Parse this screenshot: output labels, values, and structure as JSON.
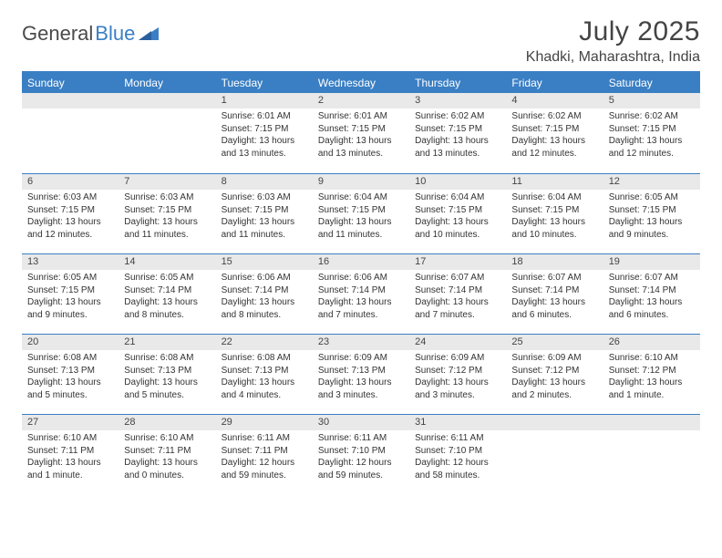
{
  "logo": {
    "text1": "General",
    "text2": "Blue"
  },
  "title": "July 2025",
  "location": "Khadki, Maharashtra, India",
  "colors": {
    "accent": "#3a7fc4",
    "header_bg": "#3a7fc4",
    "header_text": "#ffffff",
    "daynum_bg": "#e9e9e9",
    "body_text": "#333333",
    "page_bg": "#ffffff"
  },
  "weekdays": [
    "Sunday",
    "Monday",
    "Tuesday",
    "Wednesday",
    "Thursday",
    "Friday",
    "Saturday"
  ],
  "weeks": [
    [
      null,
      null,
      {
        "n": "1",
        "sr": "6:01 AM",
        "ss": "7:15 PM",
        "dl": "13 hours and 13 minutes."
      },
      {
        "n": "2",
        "sr": "6:01 AM",
        "ss": "7:15 PM",
        "dl": "13 hours and 13 minutes."
      },
      {
        "n": "3",
        "sr": "6:02 AM",
        "ss": "7:15 PM",
        "dl": "13 hours and 13 minutes."
      },
      {
        "n": "4",
        "sr": "6:02 AM",
        "ss": "7:15 PM",
        "dl": "13 hours and 12 minutes."
      },
      {
        "n": "5",
        "sr": "6:02 AM",
        "ss": "7:15 PM",
        "dl": "13 hours and 12 minutes."
      }
    ],
    [
      {
        "n": "6",
        "sr": "6:03 AM",
        "ss": "7:15 PM",
        "dl": "13 hours and 12 minutes."
      },
      {
        "n": "7",
        "sr": "6:03 AM",
        "ss": "7:15 PM",
        "dl": "13 hours and 11 minutes."
      },
      {
        "n": "8",
        "sr": "6:03 AM",
        "ss": "7:15 PM",
        "dl": "13 hours and 11 minutes."
      },
      {
        "n": "9",
        "sr": "6:04 AM",
        "ss": "7:15 PM",
        "dl": "13 hours and 11 minutes."
      },
      {
        "n": "10",
        "sr": "6:04 AM",
        "ss": "7:15 PM",
        "dl": "13 hours and 10 minutes."
      },
      {
        "n": "11",
        "sr": "6:04 AM",
        "ss": "7:15 PM",
        "dl": "13 hours and 10 minutes."
      },
      {
        "n": "12",
        "sr": "6:05 AM",
        "ss": "7:15 PM",
        "dl": "13 hours and 9 minutes."
      }
    ],
    [
      {
        "n": "13",
        "sr": "6:05 AM",
        "ss": "7:15 PM",
        "dl": "13 hours and 9 minutes."
      },
      {
        "n": "14",
        "sr": "6:05 AM",
        "ss": "7:14 PM",
        "dl": "13 hours and 8 minutes."
      },
      {
        "n": "15",
        "sr": "6:06 AM",
        "ss": "7:14 PM",
        "dl": "13 hours and 8 minutes."
      },
      {
        "n": "16",
        "sr": "6:06 AM",
        "ss": "7:14 PM",
        "dl": "13 hours and 7 minutes."
      },
      {
        "n": "17",
        "sr": "6:07 AM",
        "ss": "7:14 PM",
        "dl": "13 hours and 7 minutes."
      },
      {
        "n": "18",
        "sr": "6:07 AM",
        "ss": "7:14 PM",
        "dl": "13 hours and 6 minutes."
      },
      {
        "n": "19",
        "sr": "6:07 AM",
        "ss": "7:14 PM",
        "dl": "13 hours and 6 minutes."
      }
    ],
    [
      {
        "n": "20",
        "sr": "6:08 AM",
        "ss": "7:13 PM",
        "dl": "13 hours and 5 minutes."
      },
      {
        "n": "21",
        "sr": "6:08 AM",
        "ss": "7:13 PM",
        "dl": "13 hours and 5 minutes."
      },
      {
        "n": "22",
        "sr": "6:08 AM",
        "ss": "7:13 PM",
        "dl": "13 hours and 4 minutes."
      },
      {
        "n": "23",
        "sr": "6:09 AM",
        "ss": "7:13 PM",
        "dl": "13 hours and 3 minutes."
      },
      {
        "n": "24",
        "sr": "6:09 AM",
        "ss": "7:12 PM",
        "dl": "13 hours and 3 minutes."
      },
      {
        "n": "25",
        "sr": "6:09 AM",
        "ss": "7:12 PM",
        "dl": "13 hours and 2 minutes."
      },
      {
        "n": "26",
        "sr": "6:10 AM",
        "ss": "7:12 PM",
        "dl": "13 hours and 1 minute."
      }
    ],
    [
      {
        "n": "27",
        "sr": "6:10 AM",
        "ss": "7:11 PM",
        "dl": "13 hours and 1 minute."
      },
      {
        "n": "28",
        "sr": "6:10 AM",
        "ss": "7:11 PM",
        "dl": "13 hours and 0 minutes."
      },
      {
        "n": "29",
        "sr": "6:11 AM",
        "ss": "7:11 PM",
        "dl": "12 hours and 59 minutes."
      },
      {
        "n": "30",
        "sr": "6:11 AM",
        "ss": "7:10 PM",
        "dl": "12 hours and 59 minutes."
      },
      {
        "n": "31",
        "sr": "6:11 AM",
        "ss": "7:10 PM",
        "dl": "12 hours and 58 minutes."
      },
      null,
      null
    ]
  ],
  "labels": {
    "sunrise": "Sunrise:",
    "sunset": "Sunset:",
    "daylight": "Daylight:"
  },
  "fonts": {
    "title_size_pt": 22,
    "location_size_pt": 12,
    "header_size_pt": 9,
    "daynum_size_pt": 8,
    "body_size_pt": 7.5
  }
}
